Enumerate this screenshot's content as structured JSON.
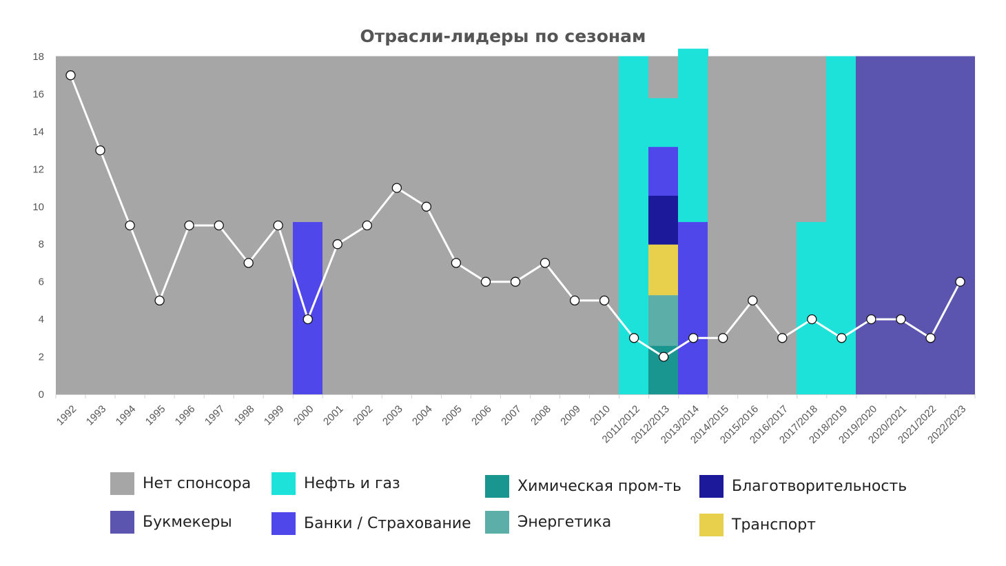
{
  "chart_data": {
    "type": "line",
    "title": "Отрасли-лидеры по сезонам",
    "xlabel": "",
    "ylabel": "",
    "ylim": [
      0,
      18
    ],
    "yticks": [
      0,
      2,
      4,
      6,
      8,
      10,
      12,
      14,
      16,
      18
    ],
    "grid": false,
    "legend_position": "bottom",
    "categories": [
      "1992",
      "1993",
      "1994",
      "1995",
      "1996",
      "1997",
      "1998",
      "1999",
      "2000",
      "2001",
      "2002",
      "2003",
      "2004",
      "2005",
      "2006",
      "2007",
      "2008",
      "2009",
      "2010",
      "2011/2012",
      "2012/2013",
      "2013/2014",
      "2014/2015",
      "2015/2016",
      "2016/2017",
      "2017/2018",
      "2018/2019",
      "2019/2020",
      "2020/2021",
      "2021/2022",
      "2022/2023"
    ],
    "series": [
      {
        "values": [
          17,
          13,
          9,
          5,
          9,
          9,
          7,
          9,
          4,
          8,
          9,
          11,
          10,
          7,
          6,
          6,
          7,
          5,
          5,
          3,
          2,
          3,
          3,
          5,
          3,
          4,
          3,
          4,
          4,
          3,
          6
        ],
        "color": "#ffffff"
      }
    ],
    "industries": [
      {
        "key": "none",
        "name": "Нет спонсора",
        "color": "#a6a6a6"
      },
      {
        "key": "oil",
        "name": "Нефть и газ",
        "color": "#1de2d9"
      },
      {
        "key": "chem",
        "name": "Химическая пром-ть",
        "color": "#1a9690"
      },
      {
        "key": "charity",
        "name": "Благотворительность",
        "color": "#1c1a9a"
      },
      {
        "key": "bookmakers",
        "name": "Букмекеры",
        "color": "#5b55b0"
      },
      {
        "key": "banks",
        "name": "Банки / Страхование",
        "color": "#4f47ea"
      },
      {
        "key": "energy",
        "name": "Энергетика",
        "color": "#5caea8"
      },
      {
        "key": "transport",
        "name": "Транспорт",
        "color": "#e8d04d"
      }
    ],
    "industry_counts": [
      {
        "none": 18
      },
      {
        "none": 18
      },
      {
        "none": 18
      },
      {
        "none": 18
      },
      {
        "none": 18
      },
      {
        "none": 18
      },
      {
        "none": 18
      },
      {
        "none": 18
      },
      {
        "banks": 9.2,
        "none": 8.8
      },
      {
        "none": 18
      },
      {
        "none": 18
      },
      {
        "none": 18
      },
      {
        "none": 18
      },
      {
        "none": 18
      },
      {
        "none": 18
      },
      {
        "none": 18
      },
      {
        "none": 18
      },
      {
        "none": 18
      },
      {
        "none": 18
      },
      {
        "oil": 18
      },
      {
        "chem": 2.6,
        "energy": 2.7,
        "transport": 2.7,
        "charity": 2.6,
        "banks": 2.6,
        "oil": 2.6,
        "none": 2.2
      },
      {
        "oil": 9.2,
        "banks": 9.2
      },
      {
        "none": 18
      },
      {
        "none": 18
      },
      {
        "none": 18
      },
      {
        "oil": 9.2,
        "none": 8.8
      },
      {
        "oil": 18
      },
      {
        "bookmakers": 18
      },
      {
        "bookmakers": 18
      },
      {
        "bookmakers": 18
      },
      {
        "bookmakers": 18
      }
    ]
  }
}
